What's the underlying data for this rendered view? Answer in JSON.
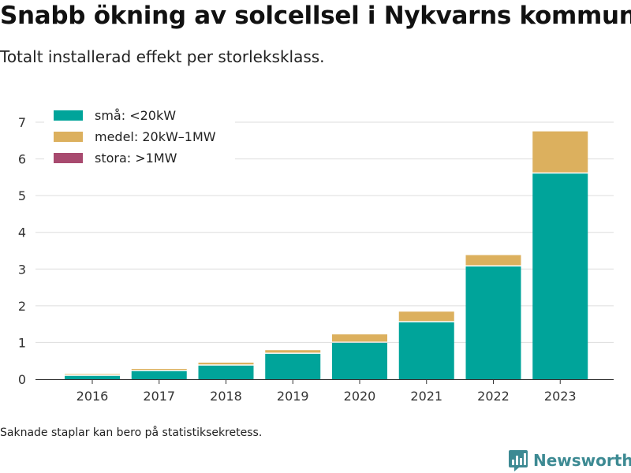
{
  "header": {
    "title": "Snabb ökning av solcellsel i Nykvarns kommun",
    "subtitle": "Totalt installerad effekt per storleksklass."
  },
  "footer": {
    "note": "Saknade staplar kan bero på statistiksekretess.",
    "brand": "Newsworthy",
    "brand_icon": "bar-chart-logo-icon"
  },
  "chart_data": {
    "type": "bar",
    "stacked": true,
    "categories": [
      "2016",
      "2017",
      "2018",
      "2019",
      "2020",
      "2021",
      "2022",
      "2023"
    ],
    "series": [
      {
        "name": "små: <20kW",
        "color": "#00a49a",
        "values": [
          0.09,
          0.22,
          0.37,
          0.69,
          0.99,
          1.55,
          3.07,
          5.6
        ]
      },
      {
        "name": "medel: 20kW–1MW",
        "color": "#dcb05e",
        "values": [
          0.05,
          0.06,
          0.08,
          0.1,
          0.23,
          0.29,
          0.31,
          1.15
        ]
      },
      {
        "name": "stora: >1MW",
        "color": "#a84a6f",
        "values": [
          0,
          0,
          0,
          0,
          0,
          0,
          0,
          0
        ]
      }
    ],
    "ylim": [
      0,
      7
    ],
    "yticks": [
      0,
      1,
      2,
      3,
      4,
      5,
      6,
      7
    ],
    "grid": true,
    "legend": "top-left",
    "xlabel": "",
    "ylabel": ""
  }
}
